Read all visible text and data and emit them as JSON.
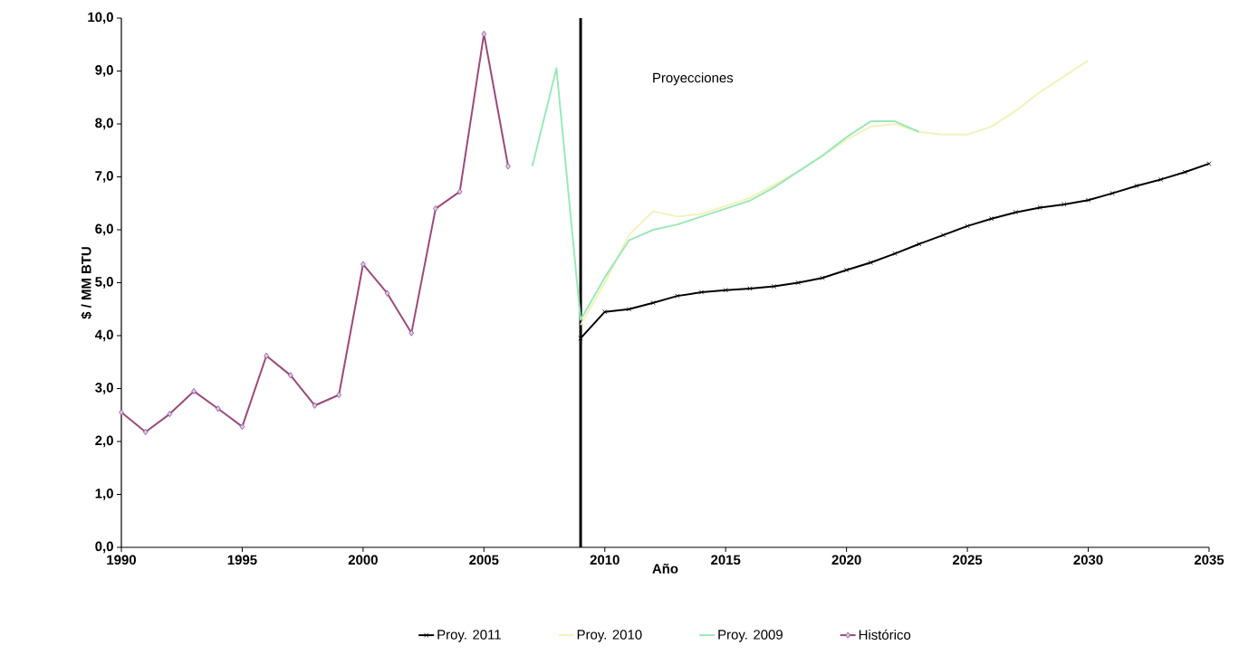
{
  "chart_data": {
    "type": "line",
    "xlabel": "Año",
    "ylabel": "$ / MM BTU",
    "xlim": [
      1990,
      2035
    ],
    "ylim": [
      0,
      10
    ],
    "xticks": [
      1990,
      1995,
      2000,
      2005,
      2010,
      2015,
      2020,
      2025,
      2030,
      2035
    ],
    "yticks": [
      {
        "value": 0,
        "label": "0,0"
      },
      {
        "value": 1,
        "label": "1,0"
      },
      {
        "value": 2,
        "label": "2,0"
      },
      {
        "value": 3,
        "label": "3,0"
      },
      {
        "value": 4,
        "label": "4,0"
      },
      {
        "value": 5,
        "label": "5,0"
      },
      {
        "value": 6,
        "label": "6,0"
      },
      {
        "value": 7,
        "label": "7,0"
      },
      {
        "value": 8,
        "label": "8,0"
      },
      {
        "value": 9,
        "label": "9,0"
      },
      {
        "value": 10,
        "label": "10,0"
      }
    ],
    "legend": "bottom",
    "annotations": [
      "Proyecciones"
    ],
    "ref_lines": [
      {
        "axis": "x",
        "value": 2009,
        "color": "#000000"
      }
    ],
    "series": [
      {
        "name": "Proy. 2011",
        "color": "#000000",
        "marker": "cross",
        "x": [
          2009,
          2010,
          2011,
          2012,
          2013,
          2014,
          2015,
          2016,
          2017,
          2018,
          2019,
          2020,
          2021,
          2022,
          2023,
          2024,
          2025,
          2026,
          2027,
          2028,
          2029,
          2030,
          2031,
          2032,
          2033,
          2034,
          2035
        ],
        "values": [
          3.95,
          4.45,
          4.5,
          4.62,
          4.75,
          4.82,
          4.86,
          4.89,
          4.93,
          5.0,
          5.09,
          5.24,
          5.38,
          5.55,
          5.73,
          5.9,
          6.07,
          6.21,
          6.33,
          6.42,
          6.48,
          6.56,
          6.69,
          6.83,
          6.95,
          7.09,
          7.25
        ]
      },
      {
        "name": "Proy. 2010",
        "color": "#f2f2bc",
        "marker": "none",
        "x": [
          2009,
          2010,
          2011,
          2012,
          2013,
          2014,
          2015,
          2016,
          2017,
          2018,
          2019,
          2020,
          2021,
          2022,
          2023,
          2024,
          2025,
          2026,
          2027,
          2028,
          2029,
          2030
        ],
        "values": [
          4.2,
          5.0,
          5.9,
          6.35,
          6.25,
          6.3,
          6.45,
          6.6,
          6.85,
          7.1,
          7.4,
          7.7,
          7.95,
          8.0,
          7.85,
          7.8,
          7.8,
          7.95,
          8.25,
          8.6,
          8.9,
          9.2
        ]
      },
      {
        "name": "Proy. 2009",
        "color": "#9be8b8",
        "marker": "none",
        "x": [
          2007,
          2008,
          2009,
          2010,
          2011,
          2012,
          2013,
          2014,
          2015,
          2016,
          2017,
          2018,
          2019,
          2020,
          2021,
          2022,
          2023
        ],
        "values": [
          7.2,
          9.05,
          4.3,
          5.1,
          5.8,
          6.0,
          6.1,
          6.25,
          6.4,
          6.55,
          6.8,
          7.1,
          7.4,
          7.75,
          8.05,
          8.05,
          7.85
        ]
      },
      {
        "name": "Histórico",
        "color": "#9a4a7a",
        "marker": "diamond",
        "x": [
          1990,
          1991,
          1992,
          1993,
          1994,
          1995,
          1996,
          1997,
          1998,
          1999,
          2000,
          2001,
          2002,
          2003,
          2004,
          2005,
          2006
        ],
        "values": [
          2.55,
          2.18,
          2.52,
          2.95,
          2.62,
          2.28,
          3.62,
          3.25,
          2.68,
          2.88,
          5.35,
          4.8,
          4.05,
          6.4,
          6.72,
          9.7,
          7.2
        ]
      }
    ]
  }
}
